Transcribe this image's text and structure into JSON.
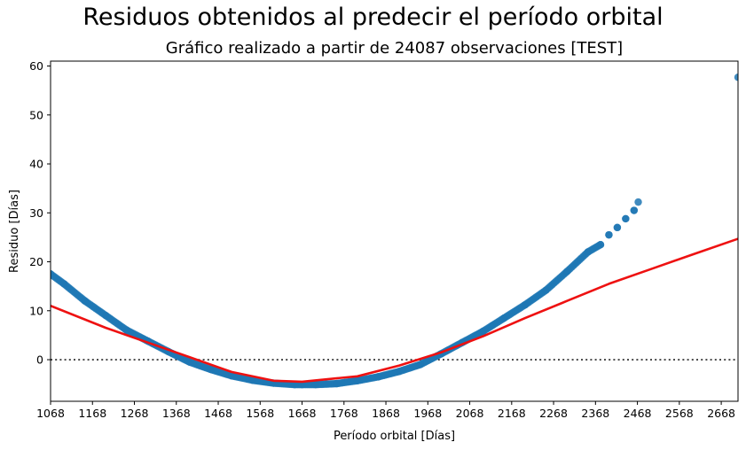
{
  "chart_data": {
    "type": "scatter",
    "title": "Residuos obtenidos al predecir el período orbital",
    "subtitle": "Gráfico realizado a partir de 24087 observaciones [TEST]",
    "xlabel": "Período orbital [Días]",
    "ylabel": "Residuo [Días]",
    "xlim": [
      1068,
      2708
    ],
    "ylim": [
      -8.5,
      61
    ],
    "x_ticks": [
      1068,
      1168,
      1268,
      1368,
      1468,
      1568,
      1668,
      1768,
      1868,
      1968,
      2068,
      2168,
      2268,
      2368,
      2468,
      2568,
      2668
    ],
    "y_ticks": [
      0,
      10,
      20,
      30,
      40,
      50,
      60
    ],
    "grid": false,
    "reference_line": {
      "y": 0,
      "style": "dotted",
      "color": "#222222"
    },
    "series": [
      {
        "kind": "scatter",
        "color": "#1f77b4",
        "points": [
          [
            1068,
            17.5
          ],
          [
            1100,
            15.5
          ],
          [
            1150,
            12.0
          ],
          [
            1200,
            9.0
          ],
          [
            1250,
            6.0
          ],
          [
            1300,
            3.8
          ],
          [
            1350,
            1.6
          ],
          [
            1400,
            -0.5
          ],
          [
            1450,
            -2.0
          ],
          [
            1500,
            -3.3
          ],
          [
            1550,
            -4.2
          ],
          [
            1600,
            -4.8
          ],
          [
            1650,
            -5.1
          ],
          [
            1668,
            -5.1
          ],
          [
            1700,
            -5.1
          ],
          [
            1750,
            -4.9
          ],
          [
            1800,
            -4.3
          ],
          [
            1850,
            -3.5
          ],
          [
            1900,
            -2.4
          ],
          [
            1950,
            -1.0
          ],
          [
            2000,
            1.2
          ],
          [
            2050,
            3.5
          ],
          [
            2100,
            5.8
          ],
          [
            2150,
            8.5
          ],
          [
            2200,
            11.2
          ],
          [
            2250,
            14.2
          ],
          [
            2300,
            18.0
          ],
          [
            2350,
            22.0
          ],
          [
            2380,
            23.5
          ],
          [
            2400,
            25.5
          ],
          [
            2420,
            27.0
          ],
          [
            2440,
            28.8
          ],
          [
            2460,
            30.5
          ],
          [
            2470,
            32.2
          ],
          [
            2708,
            57.7
          ]
        ]
      },
      {
        "kind": "line",
        "color": "#ee1111",
        "points": [
          [
            1068,
            11.0
          ],
          [
            1200,
            6.5
          ],
          [
            1300,
            3.5
          ],
          [
            1400,
            0.5
          ],
          [
            1500,
            -2.5
          ],
          [
            1600,
            -4.3
          ],
          [
            1668,
            -4.5
          ],
          [
            1750,
            -3.8
          ],
          [
            1800,
            -3.4
          ],
          [
            1900,
            -1.2
          ],
          [
            2000,
            1.5
          ],
          [
            2100,
            4.8
          ],
          [
            2200,
            8.5
          ],
          [
            2300,
            12.0
          ],
          [
            2400,
            15.5
          ],
          [
            2500,
            18.5
          ],
          [
            2600,
            21.5
          ],
          [
            2708,
            24.7
          ]
        ]
      }
    ]
  }
}
